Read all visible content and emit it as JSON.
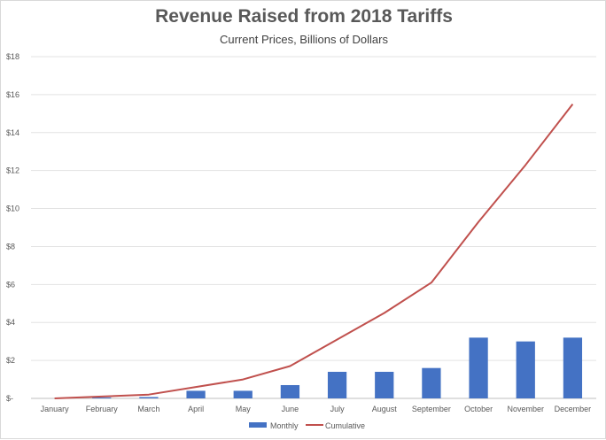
{
  "chart_data": {
    "type": "bar",
    "title": "Revenue Raised from 2018 Tariffs",
    "subtitle": "Current Prices, Billions of Dollars",
    "categories": [
      "January",
      "February",
      "March",
      "April",
      "May",
      "June",
      "July",
      "August",
      "September",
      "October",
      "November",
      "December"
    ],
    "series": [
      {
        "name": "Monthly",
        "type": "bar",
        "color": "#4472C4",
        "values": [
          0,
          0.05,
          0.07,
          0.4,
          0.4,
          0.7,
          1.4,
          1.4,
          1.6,
          3.2,
          3.0,
          3.2
        ]
      },
      {
        "name": "Cumulative",
        "type": "line",
        "color": "#C0504D",
        "values": [
          0,
          0.1,
          0.2,
          0.6,
          1.0,
          1.7,
          3.1,
          4.5,
          6.1,
          9.3,
          12.3,
          15.5
        ]
      }
    ],
    "ylim": [
      0,
      18
    ],
    "yticks": [
      0,
      2,
      4,
      6,
      8,
      10,
      12,
      14,
      16,
      18
    ],
    "ytick_labels": [
      "$-",
      "$2",
      "$4",
      "$6",
      "$8",
      "$10",
      "$12",
      "$14",
      "$16",
      "$18"
    ],
    "xlabel": "",
    "ylabel": "",
    "grid": true,
    "legend_position": "bottom"
  }
}
